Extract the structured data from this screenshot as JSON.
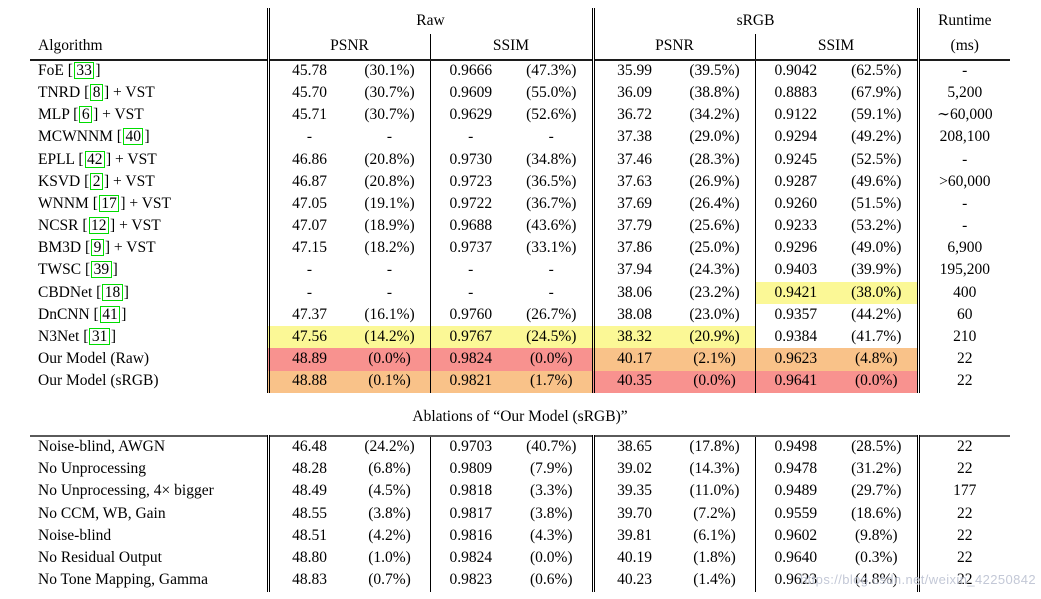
{
  "header": {
    "algorithm": "Algorithm",
    "raw_group": "Raw",
    "srgb_group": "sRGB",
    "psnr": "PSNR",
    "ssim": "SSIM",
    "runtime_line1": "Runtime",
    "runtime_line2": "(ms)"
  },
  "colors": {
    "best_highlight": "#F8928F",
    "second_highlight": "#F9C289",
    "third_highlight": "#FBF896",
    "citation_box": "#00DC00"
  },
  "main_table": {
    "rows": [
      {
        "name": "FoE",
        "cite": "33",
        "suffix": "",
        "raw_psnr": [
          "45.78",
          "(30.1%)"
        ],
        "raw_ssim": [
          "0.9666",
          "(47.3%)"
        ],
        "srgb_psnr": [
          "35.99",
          "(39.5%)"
        ],
        "srgb_ssim": [
          "0.9042",
          "(62.5%)"
        ],
        "runtime": "-"
      },
      {
        "name": "TNRD",
        "cite": "8",
        "suffix": " + VST",
        "raw_psnr": [
          "45.70",
          "(30.7%)"
        ],
        "raw_ssim": [
          "0.9609",
          "(55.0%)"
        ],
        "srgb_psnr": [
          "36.09",
          "(38.8%)"
        ],
        "srgb_ssim": [
          "0.8883",
          "(67.9%)"
        ],
        "runtime": "5,200"
      },
      {
        "name": "MLP",
        "cite": "6",
        "suffix": " + VST",
        "raw_psnr": [
          "45.71",
          "(30.7%)"
        ],
        "raw_ssim": [
          "0.9629",
          "(52.6%)"
        ],
        "srgb_psnr": [
          "36.72",
          "(34.2%)"
        ],
        "srgb_ssim": [
          "0.9122",
          "(59.1%)"
        ],
        "runtime": "∼60,000"
      },
      {
        "name": "MCWNNM",
        "cite": "40",
        "suffix": "",
        "raw_psnr": [
          "-",
          "-"
        ],
        "raw_ssim": [
          "-",
          "-"
        ],
        "srgb_psnr": [
          "37.38",
          "(29.0%)"
        ],
        "srgb_ssim": [
          "0.9294",
          "(49.2%)"
        ],
        "runtime": "208,100"
      },
      {
        "name": "EPLL",
        "cite": "42",
        "suffix": " + VST",
        "raw_psnr": [
          "46.86",
          "(20.8%)"
        ],
        "raw_ssim": [
          "0.9730",
          "(34.8%)"
        ],
        "srgb_psnr": [
          "37.46",
          "(28.3%)"
        ],
        "srgb_ssim": [
          "0.9245",
          "(52.5%)"
        ],
        "runtime": "-"
      },
      {
        "name": "KSVD",
        "cite": "2",
        "suffix": " + VST",
        "raw_psnr": [
          "46.87",
          "(20.8%)"
        ],
        "raw_ssim": [
          "0.9723",
          "(36.5%)"
        ],
        "srgb_psnr": [
          "37.63",
          "(26.9%)"
        ],
        "srgb_ssim": [
          "0.9287",
          "(49.6%)"
        ],
        "runtime": ">60,000"
      },
      {
        "name": "WNNM",
        "cite": "17",
        "suffix": " + VST",
        "raw_psnr": [
          "47.05",
          "(19.1%)"
        ],
        "raw_ssim": [
          "0.9722",
          "(36.7%)"
        ],
        "srgb_psnr": [
          "37.69",
          "(26.4%)"
        ],
        "srgb_ssim": [
          "0.9260",
          "(51.5%)"
        ],
        "runtime": "-"
      },
      {
        "name": "NCSR",
        "cite": "12",
        "suffix": " + VST",
        "raw_psnr": [
          "47.07",
          "(18.9%)"
        ],
        "raw_ssim": [
          "0.9688",
          "(43.6%)"
        ],
        "srgb_psnr": [
          "37.79",
          "(25.6%)"
        ],
        "srgb_ssim": [
          "0.9233",
          "(53.2%)"
        ],
        "runtime": "-"
      },
      {
        "name": "BM3D",
        "cite": "9",
        "suffix": " + VST",
        "raw_psnr": [
          "47.15",
          "(18.2%)"
        ],
        "raw_ssim": [
          "0.9737",
          "(33.1%)"
        ],
        "srgb_psnr": [
          "37.86",
          "(25.0%)"
        ],
        "srgb_ssim": [
          "0.9296",
          "(49.0%)"
        ],
        "runtime": "6,900"
      },
      {
        "name": "TWSC",
        "cite": "39",
        "suffix": "",
        "raw_psnr": [
          "-",
          "-"
        ],
        "raw_ssim": [
          "-",
          "-"
        ],
        "srgb_psnr": [
          "37.94",
          "(24.3%)"
        ],
        "srgb_ssim": [
          "0.9403",
          "(39.9%)"
        ],
        "runtime": "195,200"
      },
      {
        "name": "CBDNet",
        "cite": "18",
        "suffix": "",
        "raw_psnr": [
          "-",
          "-"
        ],
        "raw_ssim": [
          "-",
          "-"
        ],
        "srgb_psnr": [
          "38.06",
          "(23.2%)"
        ],
        "srgb_ssim": [
          "0.9421",
          "(38.0%)"
        ],
        "runtime": "400",
        "hl": {
          "srgb_ssim": "y"
        }
      },
      {
        "name": "DnCNN",
        "cite": "41",
        "suffix": "",
        "raw_psnr": [
          "47.37",
          "(16.1%)"
        ],
        "raw_ssim": [
          "0.9760",
          "(26.7%)"
        ],
        "srgb_psnr": [
          "38.08",
          "(23.0%)"
        ],
        "srgb_ssim": [
          "0.9357",
          "(44.2%)"
        ],
        "runtime": "60"
      },
      {
        "name": "N3Net",
        "cite": "31",
        "suffix": "",
        "raw_psnr": [
          "47.56",
          "(14.2%)"
        ],
        "raw_ssim": [
          "0.9767",
          "(24.5%)"
        ],
        "srgb_psnr": [
          "38.32",
          "(20.9%)"
        ],
        "srgb_ssim": [
          "0.9384",
          "(41.7%)"
        ],
        "runtime": "210",
        "hl": {
          "raw_psnr": "y",
          "raw_ssim": "y",
          "srgb_psnr": "y"
        }
      },
      {
        "name": "Our Model (Raw)",
        "cite": "",
        "suffix": "",
        "raw_psnr": [
          "48.89",
          "(0.0%)"
        ],
        "raw_ssim": [
          "0.9824",
          "(0.0%)"
        ],
        "srgb_psnr": [
          "40.17",
          "(2.1%)"
        ],
        "srgb_ssim": [
          "0.9623",
          "(4.8%)"
        ],
        "runtime": "22",
        "hl": {
          "raw_psnr": "r",
          "raw_ssim": "r",
          "srgb_psnr": "o",
          "srgb_ssim": "o"
        }
      },
      {
        "name": "Our Model (sRGB)",
        "cite": "",
        "suffix": "",
        "raw_psnr": [
          "48.88",
          "(0.1%)"
        ],
        "raw_ssim": [
          "0.9821",
          "(1.7%)"
        ],
        "srgb_psnr": [
          "40.35",
          "(0.0%)"
        ],
        "srgb_ssim": [
          "0.9641",
          "(0.0%)"
        ],
        "runtime": "22",
        "hl": {
          "raw_psnr": "o",
          "raw_ssim": "o",
          "srgb_psnr": "r",
          "srgb_ssim": "r"
        }
      }
    ]
  },
  "ablation_table": {
    "caption": "Ablations of “Our Model (sRGB)”",
    "rows": [
      {
        "name": "Noise-blind, AWGN",
        "cite": "",
        "suffix": "",
        "raw_psnr": [
          "46.48",
          "(24.2%)"
        ],
        "raw_ssim": [
          "0.9703",
          "(40.7%)"
        ],
        "srgb_psnr": [
          "38.65",
          "(17.8%)"
        ],
        "srgb_ssim": [
          "0.9498",
          "(28.5%)"
        ],
        "runtime": "22"
      },
      {
        "name": "No Unprocessing",
        "cite": "",
        "suffix": "",
        "raw_psnr": [
          "48.28",
          "(6.8%)"
        ],
        "raw_ssim": [
          "0.9809",
          "(7.9%)"
        ],
        "srgb_psnr": [
          "39.02",
          "(14.3%)"
        ],
        "srgb_ssim": [
          "0.9478",
          "(31.2%)"
        ],
        "runtime": "22"
      },
      {
        "name": "No Unprocessing, 4× bigger",
        "cite": "",
        "suffix": "",
        "raw_psnr": [
          "48.49",
          "(4.5%)"
        ],
        "raw_ssim": [
          "0.9818",
          "(3.3%)"
        ],
        "srgb_psnr": [
          "39.35",
          "(11.0%)"
        ],
        "srgb_ssim": [
          "0.9489",
          "(29.7%)"
        ],
        "runtime": "177"
      },
      {
        "name": "No CCM, WB, Gain",
        "cite": "",
        "suffix": "",
        "raw_psnr": [
          "48.55",
          "(3.8%)"
        ],
        "raw_ssim": [
          "0.9817",
          "(3.8%)"
        ],
        "srgb_psnr": [
          "39.70",
          "(7.2%)"
        ],
        "srgb_ssim": [
          "0.9559",
          "(18.6%)"
        ],
        "runtime": "22"
      },
      {
        "name": "Noise-blind",
        "cite": "",
        "suffix": "",
        "raw_psnr": [
          "48.51",
          "(4.2%)"
        ],
        "raw_ssim": [
          "0.9816",
          "(4.3%)"
        ],
        "srgb_psnr": [
          "39.81",
          "(6.1%)"
        ],
        "srgb_ssim": [
          "0.9602",
          "(9.8%)"
        ],
        "runtime": "22"
      },
      {
        "name": "No Residual Output",
        "cite": "",
        "suffix": "",
        "raw_psnr": [
          "48.80",
          "(1.0%)"
        ],
        "raw_ssim": [
          "0.9824",
          "(0.0%)"
        ],
        "srgb_psnr": [
          "40.19",
          "(1.8%)"
        ],
        "srgb_ssim": [
          "0.9640",
          "(0.3%)"
        ],
        "runtime": "22"
      },
      {
        "name": "No Tone Mapping, Gamma",
        "cite": "",
        "suffix": "",
        "raw_psnr": [
          "48.83",
          "(0.7%)"
        ],
        "raw_ssim": [
          "0.9823",
          "(0.6%)"
        ],
        "srgb_psnr": [
          "40.23",
          "(1.4%)"
        ],
        "srgb_ssim": [
          "0.9623",
          "(4.8%)"
        ],
        "runtime": "22"
      }
    ]
  },
  "watermark": "https://blog.csdn.net/weixin_42250842"
}
